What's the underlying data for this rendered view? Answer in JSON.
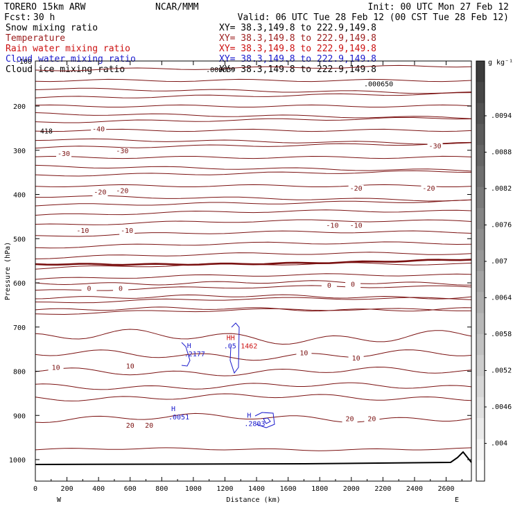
{
  "header": {
    "model": "TORERO  15km ARW",
    "center": "NCAR/MMM",
    "init": "Init: 00 UTC Mon 27 Feb 12",
    "fcst_label": "Fcst:",
    "fcst_value": "30 h",
    "valid": "Valid: 06 UTC Tue 28 Feb 12 (00 CST Tue 28 Feb 12)"
  },
  "fields": [
    {
      "name": "Snow mixing ratio",
      "xy": "XY=  38.3,149.8 to 222.9,149.8",
      "color": "#000000"
    },
    {
      "name": "Temperature",
      "xy": "XY=  38.3,149.8 to 222.9,149.8",
      "color": "#9b1c1c"
    },
    {
      "name": "Rain water mixing ratio",
      "xy": "XY=  38.3,149.8 to 222.9,149.8",
      "color": "#cc1010"
    },
    {
      "name": "Cloud water mixing ratio",
      "xy": "XY=  38.3,149.8 to 222.9,149.8",
      "color": "#1a1acc"
    },
    {
      "name": "Cloud ice mixing ratio",
      "xy": "XY=  38.3,149.8 to 222.9,149.8",
      "color": "#000000"
    }
  ],
  "colors": {
    "temperature": "#7a1010",
    "cloud_water": "#1a1acc",
    "rain": "#cc1010",
    "terrain": "#000000"
  },
  "chart_data": {
    "type": "contour",
    "title": "Cross section W-E",
    "xlabel": "Distance (km)",
    "ylabel": "Pressure (hPa)",
    "xlim": [
      0,
      2760
    ],
    "ylim": [
      1050,
      100
    ],
    "x_ticks": [
      0,
      200,
      400,
      600,
      800,
      1000,
      1200,
      1400,
      1600,
      1800,
      2000,
      2200,
      2400,
      2600
    ],
    "y_ticks": [
      200,
      300,
      400,
      500,
      600,
      700,
      800,
      900,
      1000
    ],
    "x_tick_labels": [
      "0",
      "200",
      "400",
      "600",
      "800",
      "1000",
      "1200",
      "1400",
      "1600",
      "1800",
      "2000",
      "2200",
      "2400",
      "2600"
    ],
    "y_tick_labels": [
      "200",
      "300",
      "400",
      "500",
      "600",
      "700",
      "800",
      "900",
      "1000"
    ],
    "end_labels": {
      "west": "W",
      "east": "E"
    },
    "temperature_contour_labels": [
      {
        "text": "-40",
        "x": 400,
        "p": 257
      },
      {
        "text": "-30",
        "x": 180,
        "p": 313
      },
      {
        "text": "-30",
        "x": 550,
        "p": 307
      },
      {
        "text": "-30",
        "x": 2530,
        "p": 296
      },
      {
        "text": "-20",
        "x": 410,
        "p": 400
      },
      {
        "text": "-20",
        "x": 550,
        "p": 397
      },
      {
        "text": "-20",
        "x": 2030,
        "p": 391
      },
      {
        "text": "-20",
        "x": 2490,
        "p": 391
      },
      {
        "text": "-10",
        "x": 300,
        "p": 487
      },
      {
        "text": "-10",
        "x": 580,
        "p": 487
      },
      {
        "text": "-10",
        "x": 1880,
        "p": 475
      },
      {
        "text": "-10",
        "x": 2030,
        "p": 475
      },
      {
        "text": "0",
        "x": 340,
        "p": 618
      },
      {
        "text": "0",
        "x": 540,
        "p": 618
      },
      {
        "text": "0",
        "x": 1860,
        "p": 611
      },
      {
        "text": "0",
        "x": 2010,
        "p": 609
      },
      {
        "text": "10",
        "x": 130,
        "p": 797
      },
      {
        "text": "10",
        "x": 600,
        "p": 794
      },
      {
        "text": "10",
        "x": 1700,
        "p": 764
      },
      {
        "text": "10",
        "x": 2030,
        "p": 776
      },
      {
        "text": "20",
        "x": 600,
        "p": 928
      },
      {
        "text": "20",
        "x": 720,
        "p": 928
      },
      {
        "text": "20",
        "x": 1990,
        "p": 913
      },
      {
        "text": "20",
        "x": 2130,
        "p": 913
      }
    ],
    "extrema": [
      {
        "symbol": "H",
        "value": ".2177",
        "series": "cloud_water",
        "x": 960,
        "p": 763
      },
      {
        "symbol": "H",
        "value": ".0051",
        "series": "cloud_water",
        "x": 860,
        "p": 906
      },
      {
        "symbol": "H",
        "value": ".2803",
        "series": "cloud_water",
        "x": 1340,
        "p": 921
      },
      {
        "symbol": "HH",
        "value": ".05",
        "series": "cloud_water",
        "x": 1210,
        "p": 745
      },
      {
        "symbol": "",
        "value": "1462",
        "series": "rain",
        "x": 1300,
        "p": 745
      }
    ],
    "top_values": [
      {
        "text": ".000039",
        "x": 1080,
        "p": 123
      },
      {
        "text": ".000650",
        "x": 2080,
        "p": 155
      },
      {
        "text": "418",
        "x": 30,
        "p": 262
      }
    ],
    "top_overlap_text": "-100",
    "colorbar": {
      "unit": "g kg⁻¹",
      "labels": [
        ".0094",
        ".0088",
        ".0082",
        ".0076",
        ".007",
        ".0064",
        ".0058",
        ".0052",
        ".0046",
        ".004"
      ],
      "values": [
        0.0094,
        0.0088,
        0.0082,
        0.0076,
        0.007,
        0.0064,
        0.0058,
        0.0052,
        0.0046,
        0.004
      ]
    }
  }
}
